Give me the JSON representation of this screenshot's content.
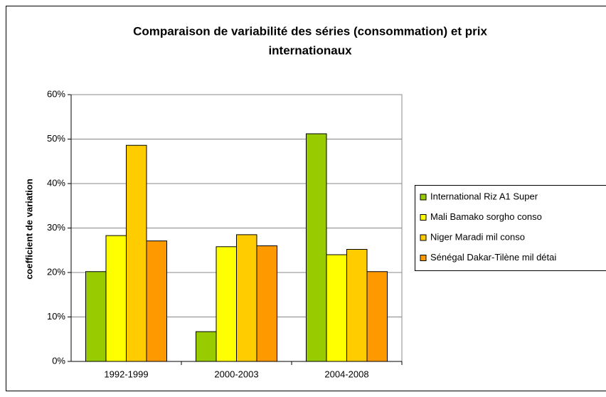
{
  "chart_data": {
    "type": "bar",
    "title": [
      "Comparaison de variabilité des séries (consommation) et prix",
      "internationaux"
    ],
    "y_label": "coefficient de variation",
    "categories": [
      "1992-1999",
      "2000-2003",
      "2004-2008"
    ],
    "series": [
      {
        "name": "International Riz A1 Super",
        "color": "#99cc00",
        "values": [
          20.2,
          6.7,
          51.2
        ]
      },
      {
        "name": "Mali Bamako sorgho conso",
        "color": "#ffff00",
        "values": [
          28.3,
          25.8,
          24
        ]
      },
      {
        "name": "Niger Maradi mil conso",
        "color": "#ffcc00",
        "values": [
          48.6,
          28.5,
          25.2
        ]
      },
      {
        "name": "Sénégal Dakar-Tilène mil détai",
        "color": "#ff9900",
        "values": [
          27.1,
          26,
          20.2
        ]
      }
    ],
    "ylim": [
      0,
      60
    ],
    "yticks": [
      {
        "value": 0,
        "label": "0%"
      },
      {
        "value": 10,
        "label": "10%"
      },
      {
        "value": 20,
        "label": "20%"
      },
      {
        "value": 30,
        "label": "30%"
      },
      {
        "value": 40,
        "label": "40%"
      },
      {
        "value": 50,
        "label": "50%"
      },
      {
        "value": 60,
        "label": "60%"
      }
    ],
    "grid": true,
    "legend": "right"
  }
}
